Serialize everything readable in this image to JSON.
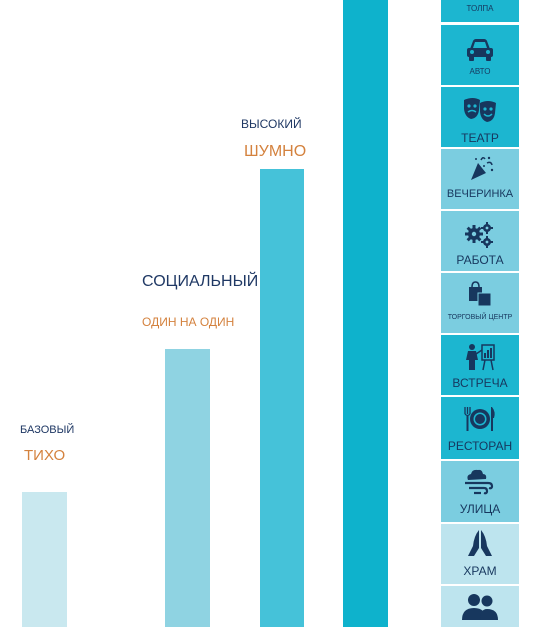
{
  "levels": [
    {
      "name": "БАЗОВЫЙ",
      "mode": "ТИХО"
    },
    {
      "name": "СОЦИАЛЬНЫЙ",
      "mode": "ОДИН НА ОДИН"
    },
    {
      "name": "ВЫСОКИЙ",
      "mode": "ШУМНО"
    }
  ],
  "tiles": [
    {
      "label": "ТОЛПА",
      "icon": "crowd-icon"
    },
    {
      "label": "АВТО",
      "icon": "car-icon"
    },
    {
      "label": "ТЕАТР",
      "icon": "theater-masks-icon"
    },
    {
      "label": "ВЕЧЕРИНКА",
      "icon": "party-popper-icon"
    },
    {
      "label": "РАБОТА",
      "icon": "gears-icon"
    },
    {
      "label": "ТОРГОВЫЙ ЦЕНТР",
      "icon": "shopping-bags-icon"
    },
    {
      "label": "ВСТРЕЧА",
      "icon": "presentation-icon"
    },
    {
      "label": "РЕСТОРАН",
      "icon": "plate-cutlery-icon"
    },
    {
      "label": "УЛИЦА",
      "icon": "wind-icon"
    },
    {
      "label": "ХРАМ",
      "icon": "praying-hands-icon"
    },
    {
      "label": "",
      "icon": "people-icon"
    }
  ],
  "colors": {
    "navy": "#1f3864",
    "orange": "#d4823e",
    "bar1": "#c9e8ef",
    "bar2": "#8fd3e2",
    "bar3": "#45c2d9",
    "bar4": "#0eb2cc",
    "tile_bright": "#1cb6d0",
    "tile_mid": "#7bcde0",
    "tile_light": "#bde4ee"
  }
}
